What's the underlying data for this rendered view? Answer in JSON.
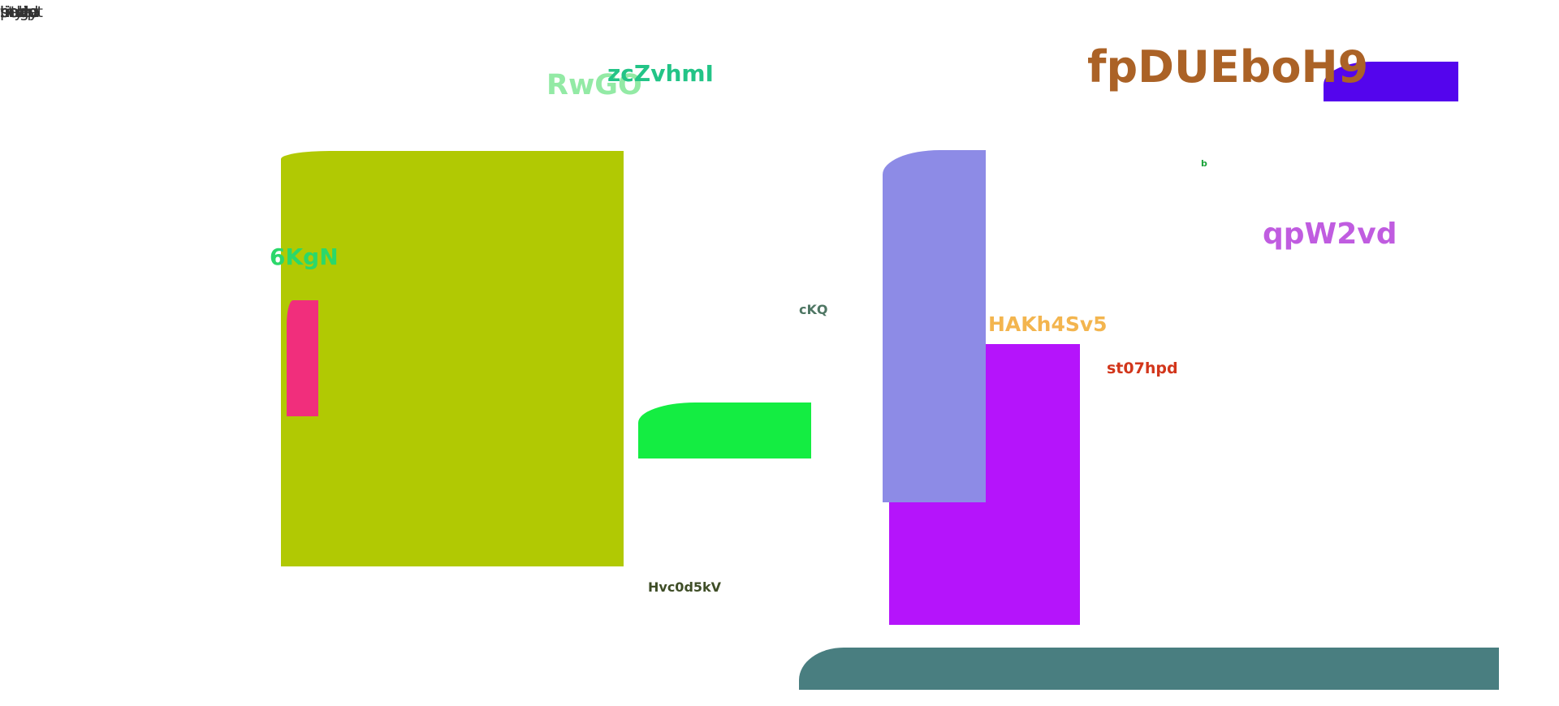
{
  "corner_labels": [
    "script",
    "style",
    "page",
    "head",
    "body",
    "meta",
    "title",
    "link"
  ],
  "labels": {
    "l1": "RwGO",
    "l2": "zcZvhmI",
    "l3": "fpDUEboH9",
    "l4": "b",
    "l5": "qpW2vd",
    "l6": "6KgN",
    "l7": "cKQ",
    "l8": "HAKh4Sv5",
    "l9": "st07hpd",
    "l10": "Hvc0d5kV"
  },
  "colors": {
    "olive": "#b1c903",
    "pink": "#f12e7c",
    "green": "#14ed42",
    "lavender": "#8d8be6",
    "violet": "#b514fb",
    "indigo": "#5405ed",
    "teal": "#497e80",
    "l1": "#93eaa5",
    "l2": "#23c487",
    "l3": "#ab6226",
    "l4": "#1ba33a",
    "l5": "#c05ce0",
    "l6": "#2bd86a",
    "l7": "#4e7663",
    "l8": "#f3b54f",
    "l9": "#d2361b",
    "l10": "#3f4e27"
  }
}
